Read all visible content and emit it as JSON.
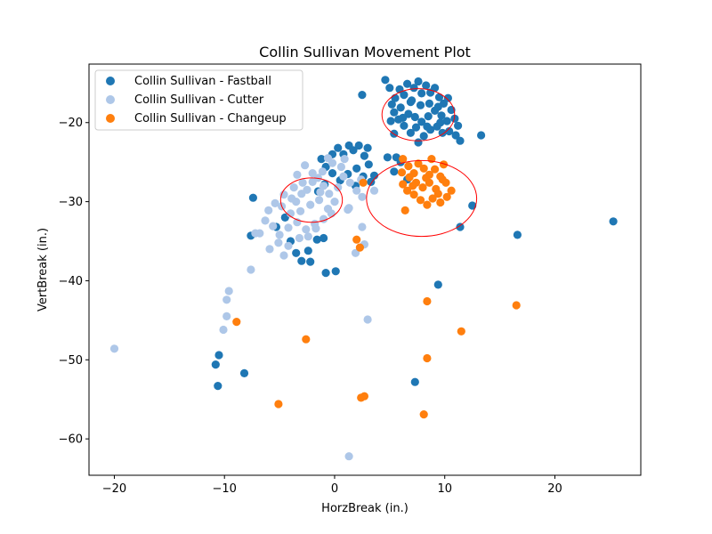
{
  "chart_data": {
    "type": "scatter",
    "title": "Collin Sullivan Movement Plot",
    "xlabel": "HorzBreak (in.)",
    "ylabel": "VertBreak (in.)",
    "xlim": [
      -22.3,
      27.8
    ],
    "ylim": [
      -64.6,
      -12.6
    ],
    "x_ticks": [
      -20,
      -10,
      0,
      10,
      20
    ],
    "y_ticks": [
      -20,
      -30,
      -40,
      -50,
      -60
    ],
    "x_tick_labels": [
      "−20",
      "−10",
      "0",
      "10",
      "20"
    ],
    "y_tick_labels": [
      "−20",
      "−30",
      "−40",
      "−50",
      "−60"
    ],
    "grid": false,
    "legend_position": "top-left",
    "series": [
      {
        "name": "Collin Sullivan - Fastball",
        "color": "#1f77b4",
        "points": [
          [
            4.6,
            -14.6
          ],
          [
            5.0,
            -15.6
          ],
          [
            5.5,
            -16.9
          ],
          [
            5.2,
            -17.7
          ],
          [
            5.9,
            -15.8
          ],
          [
            6.3,
            -16.5
          ],
          [
            6.6,
            -15.1
          ],
          [
            6.9,
            -17.4
          ],
          [
            7.2,
            -15.6
          ],
          [
            7.6,
            -14.8
          ],
          [
            7.9,
            -16.3
          ],
          [
            8.3,
            -15.3
          ],
          [
            8.7,
            -16.2
          ],
          [
            9.1,
            -15.6
          ],
          [
            9.5,
            -16.8
          ],
          [
            9.9,
            -17.6
          ],
          [
            10.3,
            -16.9
          ],
          [
            10.6,
            -18.4
          ],
          [
            10.9,
            -19.5
          ],
          [
            11.2,
            -20.4
          ],
          [
            11.0,
            -21.6
          ],
          [
            10.4,
            -21.1
          ],
          [
            9.8,
            -21.3
          ],
          [
            9.3,
            -20.5
          ],
          [
            8.7,
            -20.9
          ],
          [
            8.1,
            -21.7
          ],
          [
            7.6,
            -22.5
          ],
          [
            6.9,
            -21.3
          ],
          [
            6.3,
            -20.4
          ],
          [
            5.8,
            -19.6
          ],
          [
            5.4,
            -18.7
          ],
          [
            6.0,
            -18.1
          ],
          [
            6.7,
            -18.9
          ],
          [
            7.3,
            -19.3
          ],
          [
            7.9,
            -19.9
          ],
          [
            8.5,
            -19.2
          ],
          [
            9.1,
            -18.5
          ],
          [
            9.7,
            -19.1
          ],
          [
            10.2,
            -19.8
          ],
          [
            7.0,
            -17.2
          ],
          [
            7.8,
            -17.8
          ],
          [
            8.6,
            -17.6
          ],
          [
            9.4,
            -18.0
          ],
          [
            6.2,
            -19.4
          ],
          [
            7.4,
            -20.6
          ],
          [
            8.4,
            -20.5
          ],
          [
            9.6,
            -20.0
          ],
          [
            11.4,
            -22.3
          ],
          [
            13.3,
            -21.6
          ],
          [
            5.1,
            -19.8
          ],
          [
            2.5,
            -16.5
          ],
          [
            5.4,
            -21.4
          ],
          [
            -1.2,
            -24.6
          ],
          [
            -0.8,
            -25.6
          ],
          [
            -0.2,
            -24.0
          ],
          [
            0.3,
            -23.2
          ],
          [
            0.8,
            -24.0
          ],
          [
            1.3,
            -22.9
          ],
          [
            1.7,
            -23.5
          ],
          [
            2.2,
            -22.9
          ],
          [
            2.7,
            -24.2
          ],
          [
            3.1,
            -25.3
          ],
          [
            3.6,
            -26.7
          ],
          [
            3.3,
            -27.5
          ],
          [
            2.6,
            -26.8
          ],
          [
            1.9,
            -28.0
          ],
          [
            1.2,
            -26.5
          ],
          [
            0.5,
            -27.3
          ],
          [
            -0.2,
            -26.4
          ],
          [
            -0.9,
            -27.8
          ],
          [
            -1.5,
            -28.7
          ],
          [
            2.0,
            -25.8
          ],
          [
            3.0,
            -23.2
          ],
          [
            4.8,
            -24.4
          ],
          [
            5.4,
            -26.2
          ],
          [
            6.0,
            -25.0
          ],
          [
            5.6,
            -24.4
          ],
          [
            6.6,
            -27.2
          ],
          [
            -4.5,
            -32.0
          ],
          [
            -5.3,
            -33.2
          ],
          [
            -4.0,
            -35.0
          ],
          [
            -3.5,
            -36.5
          ],
          [
            -3.0,
            -37.5
          ],
          [
            -2.2,
            -37.6
          ],
          [
            -2.4,
            -36.2
          ],
          [
            -1.6,
            -34.8
          ],
          [
            -1.0,
            -34.6
          ],
          [
            -0.8,
            -39.0
          ],
          [
            0.1,
            -38.8
          ],
          [
            -7.4,
            -29.5
          ],
          [
            -7.6,
            -34.3
          ],
          [
            9.4,
            -40.5
          ],
          [
            7.3,
            -52.8
          ],
          [
            12.5,
            -30.5
          ],
          [
            11.4,
            -33.2
          ],
          [
            16.6,
            -34.2
          ],
          [
            25.3,
            -32.5
          ],
          [
            -10.5,
            -49.4
          ],
          [
            -10.8,
            -50.6
          ],
          [
            -10.6,
            -53.3
          ],
          [
            -8.2,
            -51.7
          ]
        ]
      },
      {
        "name": "Collin Sullivan - Cutter",
        "color": "#aec7e8",
        "points": [
          [
            -4.0,
            -31.5
          ],
          [
            -3.5,
            -30.0
          ],
          [
            -3.0,
            -29.0
          ],
          [
            -2.5,
            -28.5
          ],
          [
            -2.0,
            -27.5
          ],
          [
            -1.5,
            -27.0
          ],
          [
            -1.0,
            -28.0
          ],
          [
            -0.5,
            -29.0
          ],
          [
            0.0,
            -30.0
          ],
          [
            -0.3,
            -31.5
          ],
          [
            -1.0,
            -32.2
          ],
          [
            -1.8,
            -32.8
          ],
          [
            -2.6,
            -33.5
          ],
          [
            -3.4,
            -32.6
          ],
          [
            -4.2,
            -33.3
          ],
          [
            -5.0,
            -34.2
          ],
          [
            -5.6,
            -33.1
          ],
          [
            -6.3,
            -32.4
          ],
          [
            -6.8,
            -34.0
          ],
          [
            -4.8,
            -30.6
          ],
          [
            -3.9,
            -29.6
          ],
          [
            -3.1,
            -31.2
          ],
          [
            -2.2,
            -30.4
          ],
          [
            -1.4,
            -29.8
          ],
          [
            -0.6,
            -30.9
          ],
          [
            0.3,
            -28.2
          ],
          [
            0.8,
            -26.8
          ],
          [
            1.4,
            -27.6
          ],
          [
            2.0,
            -28.6
          ],
          [
            2.5,
            -29.4
          ],
          [
            1.3,
            -30.8
          ],
          [
            0.6,
            -25.6
          ],
          [
            -0.2,
            -25.1
          ],
          [
            -1.1,
            -26.2
          ],
          [
            -2.0,
            -26.4
          ],
          [
            -2.9,
            -27.6
          ],
          [
            -3.7,
            -28.2
          ],
          [
            -4.6,
            -29.1
          ],
          [
            -5.4,
            -30.2
          ],
          [
            -6.0,
            -31.1
          ],
          [
            -3.2,
            -34.6
          ],
          [
            -2.4,
            -34.4
          ],
          [
            -1.7,
            -33.4
          ],
          [
            -5.1,
            -35.2
          ],
          [
            -4.2,
            -35.6
          ],
          [
            0.9,
            -24.6
          ],
          [
            -0.6,
            -24.5
          ],
          [
            -1.3,
            -28.8
          ],
          [
            3.6,
            -28.6
          ],
          [
            2.4,
            -27.2
          ],
          [
            1.2,
            -31.0
          ],
          [
            -2.7,
            -25.4
          ],
          [
            -3.4,
            -26.6
          ],
          [
            -7.2,
            -34.0
          ],
          [
            -5.9,
            -36.0
          ],
          [
            -4.6,
            -36.8
          ],
          [
            -7.6,
            -38.6
          ],
          [
            -9.6,
            -41.3
          ],
          [
            -9.8,
            -42.4
          ],
          [
            -9.8,
            -44.5
          ],
          [
            -10.1,
            -46.2
          ],
          [
            -20.0,
            -48.6
          ],
          [
            2.5,
            -33.2
          ],
          [
            2.7,
            -35.4
          ],
          [
            1.9,
            -36.5
          ],
          [
            3.0,
            -44.9
          ],
          [
            1.3,
            -62.2
          ]
        ]
      },
      {
        "name": "Collin Sullivan - Changeup",
        "color": "#ff7f0e",
        "points": [
          [
            6.2,
            -24.6
          ],
          [
            6.7,
            -25.5
          ],
          [
            7.2,
            -26.4
          ],
          [
            7.6,
            -25.2
          ],
          [
            8.1,
            -25.8
          ],
          [
            8.6,
            -26.6
          ],
          [
            9.1,
            -25.9
          ],
          [
            9.6,
            -26.8
          ],
          [
            10.1,
            -27.6
          ],
          [
            10.6,
            -28.6
          ],
          [
            10.2,
            -29.4
          ],
          [
            9.6,
            -30.1
          ],
          [
            8.9,
            -29.6
          ],
          [
            8.4,
            -30.4
          ],
          [
            7.8,
            -29.8
          ],
          [
            7.2,
            -29.1
          ],
          [
            6.6,
            -28.6
          ],
          [
            6.2,
            -27.8
          ],
          [
            6.8,
            -26.9
          ],
          [
            7.4,
            -27.6
          ],
          [
            8.0,
            -28.2
          ],
          [
            8.6,
            -27.6
          ],
          [
            9.2,
            -28.4
          ],
          [
            9.8,
            -27.2
          ],
          [
            7.1,
            -28.0
          ],
          [
            8.3,
            -27.0
          ],
          [
            9.4,
            -29.0
          ],
          [
            6.4,
            -31.1
          ],
          [
            9.9,
            -25.3
          ],
          [
            8.8,
            -24.6
          ],
          [
            6.1,
            -26.3
          ],
          [
            2.6,
            -27.6
          ],
          [
            2.3,
            -35.8
          ],
          [
            2.0,
            -34.8
          ],
          [
            8.4,
            -42.6
          ],
          [
            16.5,
            -43.1
          ],
          [
            11.5,
            -46.4
          ],
          [
            -8.9,
            -45.2
          ],
          [
            -2.6,
            -47.4
          ],
          [
            8.4,
            -49.8
          ],
          [
            -5.1,
            -55.6
          ],
          [
            2.7,
            -54.6
          ],
          [
            2.4,
            -54.8
          ],
          [
            8.1,
            -56.9
          ]
        ]
      }
    ],
    "ellipses": [
      {
        "cx": 7.6,
        "cy": -19.0,
        "rx": 3.3,
        "ry": 3.3,
        "color": "#ff0000"
      },
      {
        "cx": -2.1,
        "cy": -29.8,
        "rx": 2.8,
        "ry": 2.8,
        "color": "#ff0000"
      },
      {
        "cx": 7.9,
        "cy": -29.6,
        "rx": 5.0,
        "ry": 4.8,
        "color": "#ff0000"
      }
    ]
  }
}
